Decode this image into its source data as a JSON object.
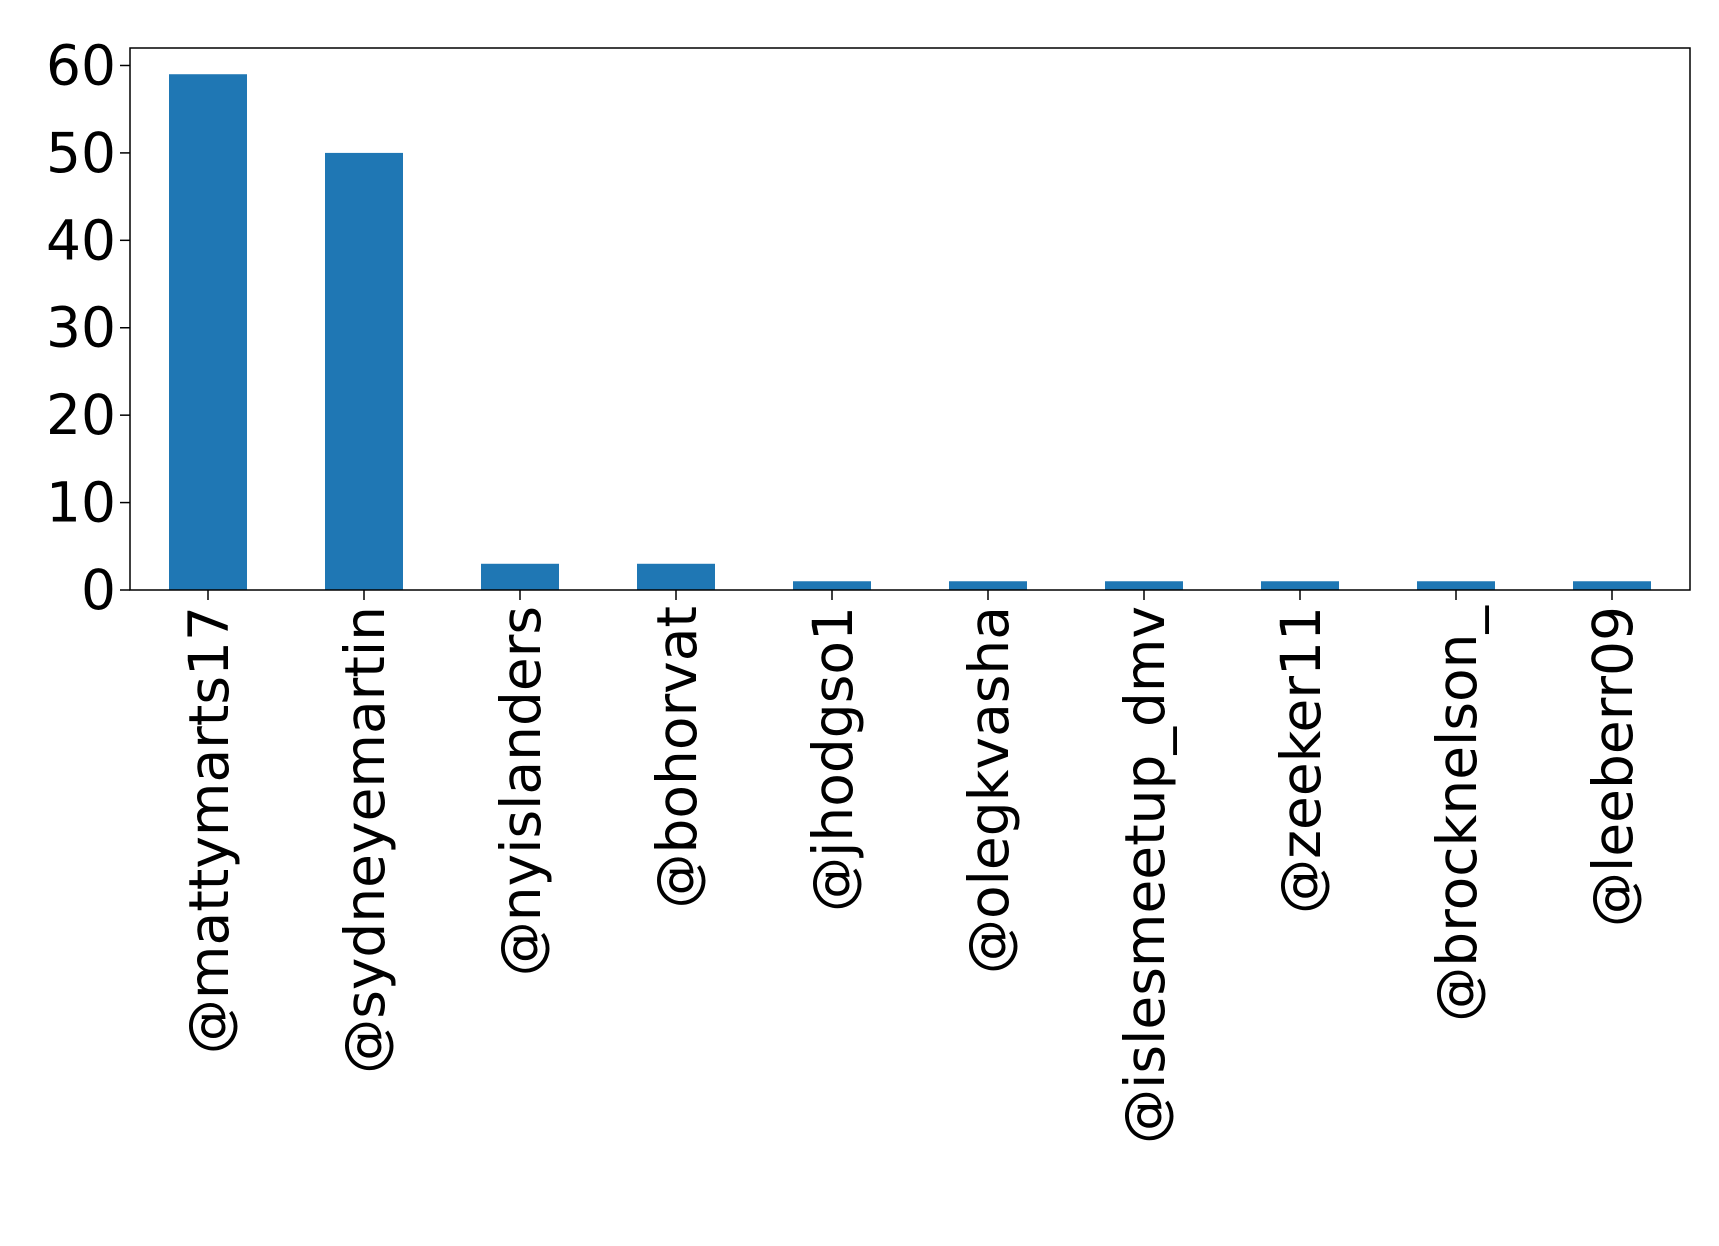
{
  "chart_data": {
    "type": "bar",
    "title": "",
    "xlabel": "",
    "ylabel": "",
    "categories": [
      "@mattymarts17",
      "@sydneyemartin",
      "@nyislanders",
      "@bohorvat",
      "@jhodgso1",
      "@olegkvasha",
      "@islesmeetup_dmv",
      "@zeeker11",
      "@brocknelson_",
      "@leeberr09"
    ],
    "values": [
      59,
      50,
      3,
      3,
      1,
      1,
      1,
      1,
      1,
      1
    ],
    "ylim": [
      0,
      62
    ],
    "yticks": [
      0,
      10,
      20,
      30,
      40,
      50,
      60
    ],
    "bar_color": "#1f77b4",
    "grid": false,
    "legend": "none"
  }
}
